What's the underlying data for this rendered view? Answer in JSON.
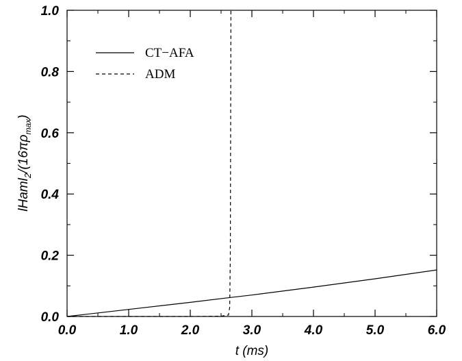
{
  "chart_data": {
    "type": "line",
    "xlabel": "t (ms)",
    "ylabel": {
      "prefix": "lHaml",
      "sub1": "2",
      "mid": "/(16πρ",
      "sub2": "max",
      "suffix": ")"
    },
    "xlim": [
      0,
      6
    ],
    "ylim": [
      0,
      1
    ],
    "xticks": [
      0,
      1,
      2,
      3,
      4,
      5,
      6
    ],
    "xtick_labels": [
      "0.0",
      "1.0",
      "2.0",
      "3.0",
      "4.0",
      "5.0",
      "6.0"
    ],
    "yticks": [
      0,
      0.2,
      0.4,
      0.6,
      0.8,
      1.0
    ],
    "ytick_labels": [
      "0.0",
      "0.2",
      "0.4",
      "0.6",
      "0.8",
      "1.0"
    ],
    "grid": false,
    "legend_position": "top-left",
    "series": [
      {
        "name": "CT−AFA",
        "style": "solid",
        "x": [
          0,
          1,
          2,
          2.65,
          3,
          4,
          5,
          6
        ],
        "y": [
          0,
          0.023,
          0.046,
          0.062,
          0.07,
          0.096,
          0.123,
          0.152
        ]
      },
      {
        "name": "ADM",
        "style": "dashed",
        "x": [
          0,
          1,
          2,
          2.5,
          2.62,
          2.64,
          2.65,
          2.66
        ],
        "y": [
          0,
          0,
          0,
          0.001,
          0.005,
          0.03,
          0.2,
          1.0
        ]
      }
    ]
  }
}
